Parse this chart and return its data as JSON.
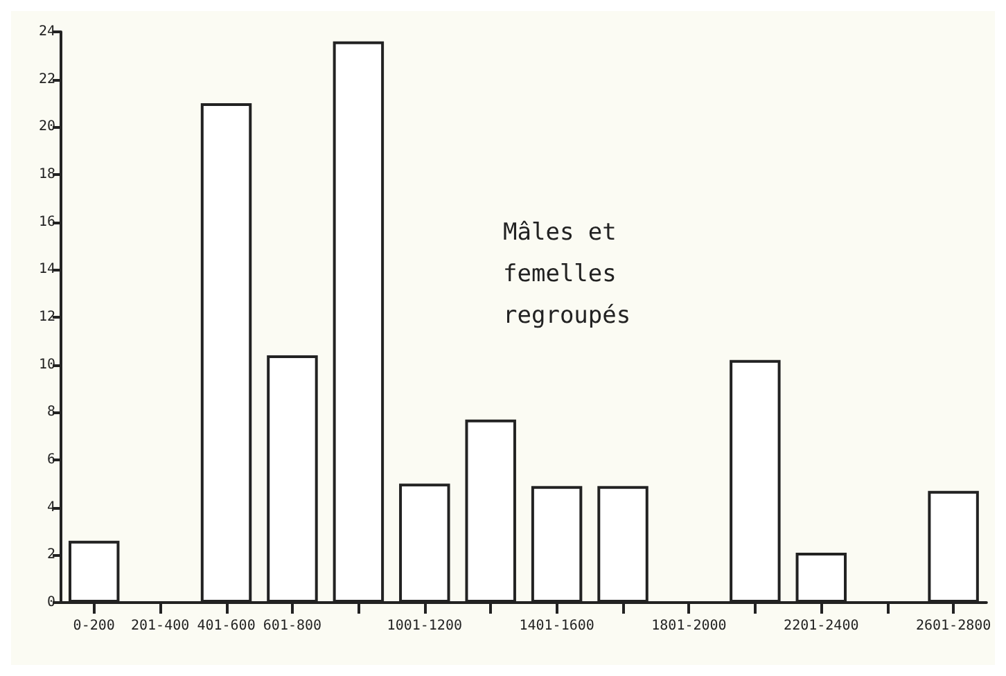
{
  "chart_data": {
    "type": "bar",
    "categories": [
      "0-200",
      "201-400",
      "401-600",
      "601-800",
      null,
      "1001-1200",
      null,
      "1401-1600",
      null,
      "1801-2000",
      null,
      "2201-2400",
      null,
      "2601-2800"
    ],
    "values": [
      2.6,
      0,
      21,
      10.4,
      23.6,
      5,
      7.7,
      4.9,
      4.9,
      0,
      10.2,
      2.1,
      0,
      4.7
    ],
    "color": "#ffffff",
    "ylim": [
      0,
      24
    ],
    "yticks": [
      0,
      2,
      4,
      6,
      8,
      10,
      12,
      14,
      16,
      18,
      20,
      22,
      24
    ],
    "grid": false,
    "annotations": [
      {
        "text": "Mâles et femelles regroupés"
      }
    ]
  }
}
